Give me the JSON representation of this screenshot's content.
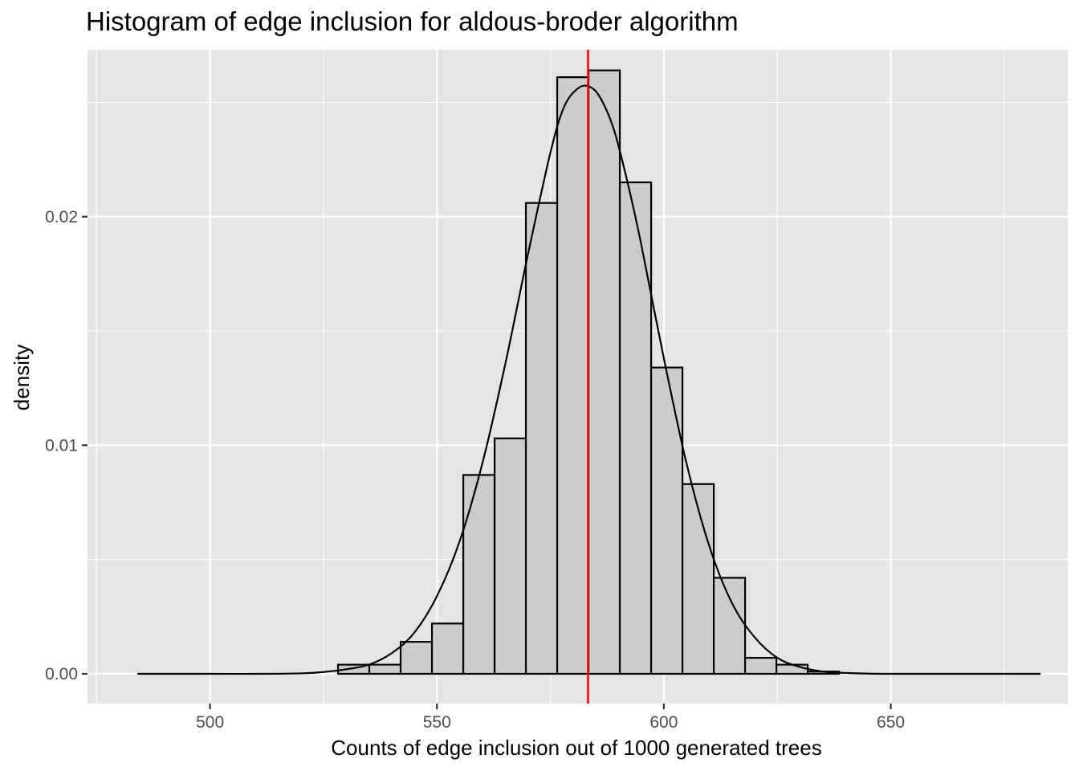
{
  "chart_data": {
    "type": "bar",
    "subtype": "histogram-with-density",
    "title": "Histogram of edge inclusion for aldous-broder algorithm",
    "xlabel": "Counts of edge inclusion out of 1000 generated trees",
    "ylabel": "density",
    "xlim": [
      473,
      689
    ],
    "ylim": [
      -0.0013,
      0.0273
    ],
    "x_ticks": [
      500,
      550,
      600,
      650
    ],
    "x_tick_labels": [
      "500",
      "550",
      "600",
      "650"
    ],
    "y_ticks": [
      0.0,
      0.01,
      0.02
    ],
    "y_tick_labels": [
      "0.00",
      "0.01",
      "0.02"
    ],
    "grid": true,
    "bins": [
      {
        "x0": 486.8,
        "x1": 493.7,
        "density": 0.0
      },
      {
        "x0": 493.7,
        "x1": 500.6,
        "density": 0.0
      },
      {
        "x0": 500.6,
        "x1": 507.5,
        "density": 0.0
      },
      {
        "x0": 507.5,
        "x1": 514.4,
        "density": 0.0
      },
      {
        "x0": 514.4,
        "x1": 521.3,
        "density": 0.0
      },
      {
        "x0": 521.3,
        "x1": 528.2,
        "density": 0.0
      },
      {
        "x0": 528.2,
        "x1": 535.1,
        "density": 0.0004
      },
      {
        "x0": 535.1,
        "x1": 542.0,
        "density": 0.0004
      },
      {
        "x0": 542.0,
        "x1": 548.9,
        "density": 0.0014
      },
      {
        "x0": 548.9,
        "x1": 555.8,
        "density": 0.0022
      },
      {
        "x0": 555.8,
        "x1": 562.7,
        "density": 0.0087
      },
      {
        "x0": 562.7,
        "x1": 569.6,
        "density": 0.0103
      },
      {
        "x0": 569.6,
        "x1": 576.5,
        "density": 0.0206
      },
      {
        "x0": 576.5,
        "x1": 583.4,
        "density": 0.0261
      },
      {
        "x0": 583.4,
        "x1": 590.3,
        "density": 0.0264
      },
      {
        "x0": 590.3,
        "x1": 597.2,
        "density": 0.0215
      },
      {
        "x0": 597.2,
        "x1": 604.1,
        "density": 0.0134
      },
      {
        "x0": 604.1,
        "x1": 611.0,
        "density": 0.0083
      },
      {
        "x0": 611.0,
        "x1": 617.9,
        "density": 0.0042
      },
      {
        "x0": 617.9,
        "x1": 624.8,
        "density": 0.0007
      },
      {
        "x0": 624.8,
        "x1": 631.7,
        "density": 0.0004
      },
      {
        "x0": 631.7,
        "x1": 638.6,
        "density": 0.0001
      },
      {
        "x0": 638.6,
        "x1": 645.5,
        "density": 0.0
      },
      {
        "x0": 645.5,
        "x1": 652.4,
        "density": 0.0
      },
      {
        "x0": 652.4,
        "x1": 659.3,
        "density": 0.0
      },
      {
        "x0": 659.3,
        "x1": 666.2,
        "density": 0.0
      },
      {
        "x0": 666.2,
        "x1": 673.1,
        "density": 0.0
      },
      {
        "x0": 673.1,
        "x1": 680.0,
        "density": 0.0
      }
    ],
    "density_curve": {
      "x": [
        484,
        500,
        510,
        520,
        525,
        530,
        535,
        540,
        545,
        550,
        555,
        560,
        565,
        570,
        575,
        578,
        581,
        583.5,
        586,
        589,
        592,
        595,
        600,
        605,
        610,
        615,
        620,
        625,
        630,
        635,
        640,
        645,
        650,
        660,
        670,
        683
      ],
      "y": [
        0.0,
        0.0,
        0.0,
        2e-05,
        8e-05,
        0.0002,
        0.0004,
        0.0009,
        0.0018,
        0.0034,
        0.0058,
        0.0092,
        0.0135,
        0.0183,
        0.0228,
        0.0248,
        0.0256,
        0.0257,
        0.0252,
        0.0238,
        0.0215,
        0.0188,
        0.0138,
        0.0092,
        0.0056,
        0.0031,
        0.0016,
        0.0007,
        0.0003,
        0.0001,
        4e-05,
        1e-05,
        0.0,
        0.0,
        0.0,
        0.0
      ]
    },
    "vline": {
      "x": 583.3,
      "color": "#ff0000"
    },
    "colors": {
      "panel_background": "#e5e5e5",
      "grid_major": "#ffffff",
      "bar_fill": "#cccccc",
      "bar_outline": "#000000",
      "curve": "#000000"
    }
  }
}
